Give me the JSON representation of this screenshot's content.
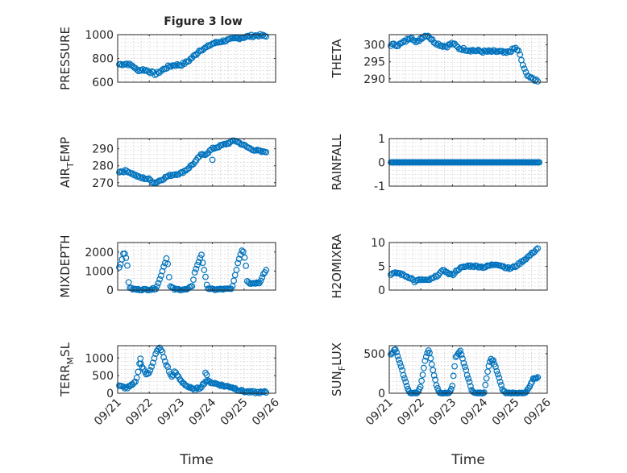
{
  "figure_title": "Figure 3 low",
  "chart_data": [
    {
      "type": "scatter",
      "name": "pressure-panel",
      "title": "Figure 3 low",
      "ylabel": "PRESSURE",
      "ylabel_sub": "",
      "ylabel_tail": "",
      "xlabel": "",
      "xlim": [
        0,
        5
      ],
      "ylim": [
        600,
        1000
      ],
      "yticks": [
        {
          "v": 600,
          "label": "600"
        },
        {
          "v": 800,
          "label": "800"
        },
        {
          "v": 1000,
          "label": "1000"
        }
      ],
      "anchors": [
        [
          0.05,
          750
        ],
        [
          0.3,
          755
        ],
        [
          0.5,
          735
        ],
        [
          0.6,
          700
        ],
        [
          0.8,
          705
        ],
        [
          0.9,
          700
        ],
        [
          1.1,
          680
        ],
        [
          1.2,
          665
        ],
        [
          1.4,
          700
        ],
        [
          1.6,
          730
        ],
        [
          1.8,
          745
        ],
        [
          2.0,
          745
        ],
        [
          2.2,
          770
        ],
        [
          2.5,
          840
        ],
        [
          2.6,
          870
        ],
        [
          2.8,
          890
        ],
        [
          3.0,
          925
        ],
        [
          3.4,
          950
        ],
        [
          3.8,
          970
        ],
        [
          4.2,
          988
        ],
        [
          4.5,
          995
        ],
        [
          4.7,
          985
        ]
      ],
      "count": 100,
      "noise": 10
    },
    {
      "type": "scatter",
      "name": "theta-panel",
      "title": "",
      "ylabel": "THETA",
      "ylabel_sub": "",
      "ylabel_tail": "",
      "xlabel": "",
      "xlim": [
        0,
        5
      ],
      "ylim": [
        289,
        303
      ],
      "yticks": [
        {
          "v": 290,
          "label": "290"
        },
        {
          "v": 295,
          "label": "295"
        },
        {
          "v": 300,
          "label": "300"
        }
      ],
      "anchors": [
        [
          0.05,
          300
        ],
        [
          0.3,
          300
        ],
        [
          0.5,
          301
        ],
        [
          0.7,
          302.5
        ],
        [
          0.85,
          300.5
        ],
        [
          1.0,
          302
        ],
        [
          1.2,
          303
        ],
        [
          1.4,
          301
        ],
        [
          1.6,
          300
        ],
        [
          1.8,
          299.5
        ],
        [
          2.0,
          300.5
        ],
        [
          2.2,
          299
        ],
        [
          2.5,
          298.5
        ],
        [
          3.0,
          298
        ],
        [
          3.5,
          298
        ],
        [
          3.7,
          297.5
        ],
        [
          3.9,
          298.5
        ],
        [
          4.0,
          299
        ],
        [
          4.1,
          298
        ],
        [
          4.2,
          295
        ],
        [
          4.3,
          292
        ],
        [
          4.5,
          290
        ],
        [
          4.7,
          289.5
        ]
      ],
      "count": 100,
      "noise": 0.4
    },
    {
      "type": "scatter",
      "name": "air-temp-panel",
      "title": "",
      "ylabel": "AIR",
      "ylabel_sub": "T",
      "ylabel_tail": "EMP",
      "xlabel": "",
      "xlim": [
        0,
        5
      ],
      "ylim": [
        268,
        296
      ],
      "yticks": [
        {
          "v": 270,
          "label": "270"
        },
        {
          "v": 280,
          "label": "280"
        },
        {
          "v": 290,
          "label": "290"
        }
      ],
      "anchors": [
        [
          0.05,
          276.5
        ],
        [
          0.3,
          277
        ],
        [
          0.5,
          275
        ],
        [
          0.7,
          273
        ],
        [
          0.9,
          272.5
        ],
        [
          1.0,
          272
        ],
        [
          1.1,
          270.5
        ],
        [
          1.2,
          270
        ],
        [
          1.4,
          272
        ],
        [
          1.6,
          274
        ],
        [
          1.8,
          275
        ],
        [
          2.0,
          275.5
        ],
        [
          2.2,
          278
        ],
        [
          2.5,
          283
        ],
        [
          2.6,
          286
        ],
        [
          2.8,
          287
        ],
        [
          3.0,
          290
        ],
        [
          3.3,
          292
        ],
        [
          3.6,
          294
        ],
        [
          3.7,
          295
        ],
        [
          3.8,
          294
        ],
        [
          4.0,
          292
        ],
        [
          4.2,
          290
        ],
        [
          4.4,
          289
        ],
        [
          4.6,
          288
        ],
        [
          4.7,
          288.5
        ]
      ],
      "count": 100,
      "noise": 0.6,
      "extra": [
        [
          3.0,
          283.5
        ]
      ]
    },
    {
      "type": "scatter",
      "name": "rainfall-panel",
      "title": "",
      "ylabel": "RAINFALL",
      "ylabel_sub": "",
      "ylabel_tail": "",
      "xlabel": "",
      "xlim": [
        0,
        5
      ],
      "ylim": [
        -1,
        1
      ],
      "yticks": [
        {
          "v": -1,
          "label": "-1"
        },
        {
          "v": 0,
          "label": "0"
        },
        {
          "v": 1,
          "label": "1"
        }
      ],
      "anchors": [
        [
          0.05,
          0
        ],
        [
          4.75,
          0
        ]
      ],
      "count": 140,
      "noise": 0
    },
    {
      "type": "scatter",
      "name": "mixdepth-panel",
      "title": "",
      "ylabel": "MIXDEPTH",
      "ylabel_sub": "",
      "ylabel_tail": "",
      "xlabel": "",
      "xlim": [
        0,
        5
      ],
      "ylim": [
        0,
        2500
      ],
      "yticks": [
        {
          "v": 0,
          "label": "0"
        },
        {
          "v": 1000,
          "label": "1000"
        },
        {
          "v": 2000,
          "label": "2000"
        }
      ],
      "anchors": [
        [
          0.05,
          1200
        ],
        [
          0.12,
          1500
        ],
        [
          0.2,
          2100
        ],
        [
          0.3,
          1400
        ],
        [
          0.35,
          400
        ],
        [
          0.4,
          80
        ],
        [
          0.6,
          30
        ],
        [
          1.0,
          30
        ],
        [
          1.2,
          80
        ],
        [
          1.3,
          400
        ],
        [
          1.45,
          1200
        ],
        [
          1.55,
          1700
        ],
        [
          1.6,
          1300
        ],
        [
          1.65,
          200
        ],
        [
          1.8,
          40
        ],
        [
          2.2,
          30
        ],
        [
          2.35,
          200
        ],
        [
          2.45,
          1000
        ],
        [
          2.55,
          1400
        ],
        [
          2.65,
          1900
        ],
        [
          2.75,
          900
        ],
        [
          2.85,
          100
        ],
        [
          3.0,
          30
        ],
        [
          3.6,
          60
        ],
        [
          3.7,
          600
        ],
        [
          3.8,
          1400
        ],
        [
          3.95,
          2200
        ],
        [
          4.05,
          1500
        ],
        [
          4.1,
          500
        ],
        [
          4.2,
          350
        ],
        [
          4.5,
          400
        ],
        [
          4.6,
          800
        ],
        [
          4.7,
          1050
        ]
      ],
      "count": 110,
      "noise": 40
    },
    {
      "type": "scatter",
      "name": "h2omixra-panel",
      "title": "",
      "ylabel": "H2OMIXRA",
      "ylabel_sub": "",
      "ylabel_tail": "",
      "xlabel": "",
      "xlim": [
        0,
        5
      ],
      "ylim": [
        0,
        10
      ],
      "yticks": [
        {
          "v": 0,
          "label": "0"
        },
        {
          "v": 5,
          "label": "5"
        },
        {
          "v": 10,
          "label": "10"
        }
      ],
      "anchors": [
        [
          0.05,
          3.4
        ],
        [
          0.3,
          3.6
        ],
        [
          0.5,
          3.0
        ],
        [
          0.7,
          2.5
        ],
        [
          0.8,
          1.8
        ],
        [
          1.0,
          2.2
        ],
        [
          1.2,
          2.0
        ],
        [
          1.4,
          2.5
        ],
        [
          1.6,
          3.5
        ],
        [
          1.75,
          4.3
        ],
        [
          1.85,
          3.5
        ],
        [
          2.0,
          3.2
        ],
        [
          2.2,
          4.5
        ],
        [
          2.5,
          5.1
        ],
        [
          2.8,
          5.0
        ],
        [
          3.0,
          4.8
        ],
        [
          3.2,
          5.2
        ],
        [
          3.4,
          5.5
        ],
        [
          3.6,
          5.0
        ],
        [
          3.8,
          4.5
        ],
        [
          4.0,
          5.0
        ],
        [
          4.2,
          6.0
        ],
        [
          4.4,
          7.0
        ],
        [
          4.6,
          8.2
        ],
        [
          4.7,
          8.8
        ]
      ],
      "count": 100,
      "noise": 0.2
    },
    {
      "type": "scatter",
      "name": "terrmsl-panel",
      "title": "",
      "ylabel": "TERR",
      "ylabel_sub": "M",
      "ylabel_tail": "SL",
      "xlabel": "Time",
      "xlim": [
        0,
        5
      ],
      "ylim": [
        0,
        1350
      ],
      "yticks": [
        {
          "v": 0,
          "label": "0"
        },
        {
          "v": 500,
          "label": "500"
        },
        {
          "v": 1000,
          "label": "1000"
        }
      ],
      "anchors": [
        [
          0.05,
          200
        ],
        [
          0.3,
          150
        ],
        [
          0.5,
          250
        ],
        [
          0.6,
          400
        ],
        [
          0.7,
          900
        ],
        [
          0.8,
          700
        ],
        [
          0.9,
          550
        ],
        [
          1.0,
          600
        ],
        [
          1.1,
          800
        ],
        [
          1.2,
          1100
        ],
        [
          1.3,
          1300
        ],
        [
          1.4,
          1200
        ],
        [
          1.5,
          900
        ],
        [
          1.6,
          700
        ],
        [
          1.7,
          450
        ],
        [
          1.8,
          600
        ],
        [
          1.9,
          500
        ],
        [
          2.0,
          350
        ],
        [
          2.2,
          200
        ],
        [
          2.4,
          100
        ],
        [
          2.6,
          150
        ],
        [
          2.8,
          350
        ],
        [
          3.0,
          300
        ],
        [
          3.2,
          250
        ],
        [
          3.4,
          200
        ],
        [
          3.6,
          180
        ],
        [
          3.8,
          100
        ],
        [
          4.0,
          50
        ],
        [
          4.2,
          30
        ],
        [
          4.5,
          20
        ],
        [
          4.7,
          30
        ]
      ],
      "count": 110,
      "noise": 30,
      "extra": [
        [
          0.72,
          980
        ],
        [
          2.78,
          580
        ],
        [
          2.82,
          520
        ]
      ]
    },
    {
      "type": "scatter",
      "name": "sunflux-panel",
      "title": "",
      "ylabel": "SUN",
      "ylabel_sub": "F",
      "ylabel_tail": "LUX",
      "xlabel": "Time",
      "xlim": [
        0,
        5
      ],
      "ylim": [
        0,
        600
      ],
      "yticks": [
        {
          "v": 0,
          "label": "0"
        },
        {
          "v": 500,
          "label": "500"
        }
      ],
      "anchors": [
        [
          0.05,
          490
        ],
        [
          0.2,
          560
        ],
        [
          0.55,
          100
        ],
        [
          0.65,
          0
        ],
        [
          0.9,
          0
        ],
        [
          1.0,
          100
        ],
        [
          1.15,
          450
        ],
        [
          1.25,
          550
        ],
        [
          1.5,
          80
        ],
        [
          1.6,
          0
        ],
        [
          1.9,
          0
        ],
        [
          2.0,
          100
        ],
        [
          2.1,
          450
        ],
        [
          2.25,
          530
        ],
        [
          2.6,
          50
        ],
        [
          2.7,
          0
        ],
        [
          3.0,
          0
        ],
        [
          3.1,
          250
        ],
        [
          3.2,
          430
        ],
        [
          3.3,
          410
        ],
        [
          3.6,
          30
        ],
        [
          3.7,
          0
        ],
        [
          4.3,
          0
        ],
        [
          4.45,
          80
        ],
        [
          4.55,
          180
        ],
        [
          4.7,
          200
        ]
      ],
      "count": 130,
      "noise": 8
    }
  ],
  "x_axis": {
    "label": "Time",
    "ticks": [
      {
        "v": 0,
        "label": "09/21"
      },
      {
        "v": 1,
        "label": "09/22"
      },
      {
        "v": 2,
        "label": "09/23"
      },
      {
        "v": 3,
        "label": "09/24"
      },
      {
        "v": 4,
        "label": "09/25"
      },
      {
        "v": 5,
        "label": "09/26"
      }
    ]
  },
  "colors": {
    "marker": "#0072BD",
    "axis": "#262626",
    "grid": "#c8c8c8"
  }
}
